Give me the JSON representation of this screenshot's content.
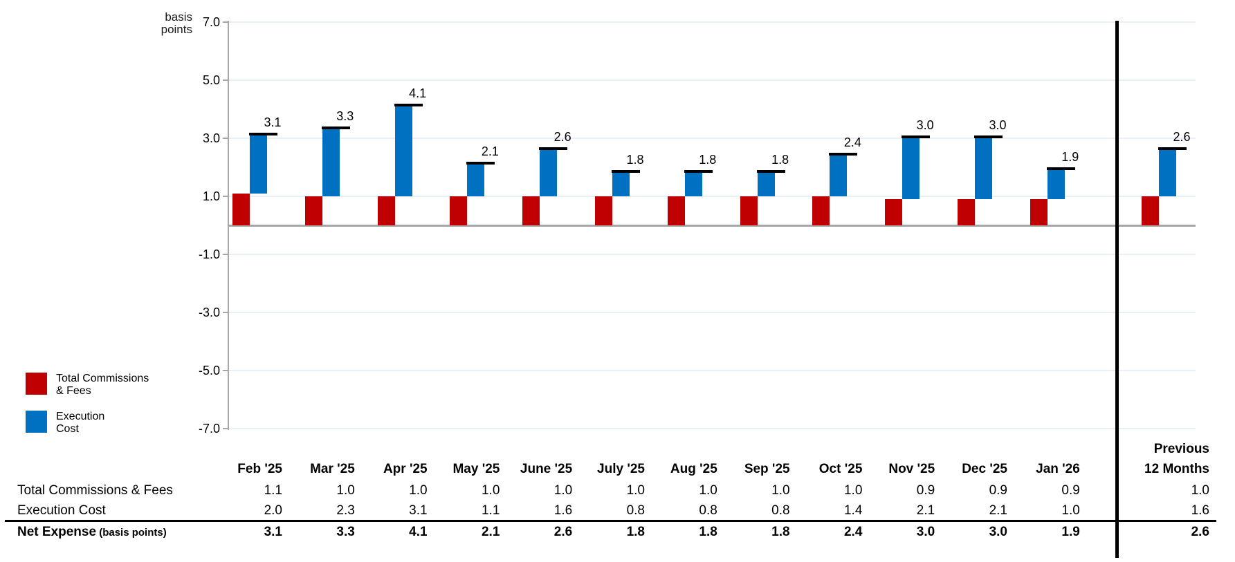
{
  "unit_label": {
    "line1": "basis",
    "line2": "points"
  },
  "legend": {
    "items": [
      {
        "id": "total-commissions-fees",
        "label_line1": "Total Commissions",
        "label_line2": "& Fees",
        "color": "#C00000"
      },
      {
        "id": "execution-cost",
        "label_line1": "Execution",
        "label_line2": "Cost",
        "color": "#0070C0"
      }
    ]
  },
  "chart_data": {
    "type": "bar",
    "subtype": "stacked floating columns with total markers",
    "title": "",
    "ylabel": "basis points",
    "ylim": [
      -7.0,
      7.0
    ],
    "yticks": [
      7.0,
      5.0,
      3.0,
      1.0,
      -1.0,
      -3.0,
      -5.0,
      -7.0
    ],
    "grid": true,
    "legend_position": "bottom-left",
    "categories": [
      "Feb '25",
      "Mar '25",
      "Apr '25",
      "May '25",
      "June '25",
      "July '25",
      "Aug '25",
      "Sep '25",
      "Oct '25",
      "Nov '25",
      "Dec '25",
      "Jan '26",
      "Previous 12 Months"
    ],
    "series": [
      {
        "name": "Total Commissions & Fees",
        "color": "#C00000",
        "values": [
          1.1,
          1.0,
          1.0,
          1.0,
          1.0,
          1.0,
          1.0,
          1.0,
          1.0,
          0.9,
          0.9,
          0.9,
          1.0
        ]
      },
      {
        "name": "Execution Cost",
        "color": "#0070C0",
        "values": [
          2.0,
          2.3,
          3.1,
          1.1,
          1.6,
          0.8,
          0.8,
          0.8,
          1.4,
          2.1,
          2.1,
          1.0,
          1.6
        ]
      }
    ],
    "totals": {
      "name": "Net Expense",
      "values": [
        3.1,
        3.3,
        4.1,
        2.1,
        2.6,
        1.8,
        1.8,
        1.8,
        2.4,
        3.0,
        3.0,
        1.9,
        2.6
      ]
    }
  },
  "table": {
    "month_headers": [
      "Feb '25",
      "Mar '25",
      "Apr '25",
      "May '25",
      "June '25",
      "July '25",
      "Aug '25",
      "Sep '25",
      "Oct '25",
      "Nov '25",
      "Dec '25",
      "Jan '26"
    ],
    "prev_header_line1": "Previous",
    "prev_header_line2": "12 Months",
    "rows": [
      {
        "label": "Total Commissions & Fees",
        "note": "",
        "bold": false,
        "values": [
          1.1,
          1.0,
          1.0,
          1.0,
          1.0,
          1.0,
          1.0,
          1.0,
          1.0,
          0.9,
          0.9,
          0.9
        ],
        "previous": 1.0
      },
      {
        "label": "Execution Cost",
        "note": "",
        "bold": false,
        "values": [
          2.0,
          2.3,
          3.1,
          1.1,
          1.6,
          0.8,
          0.8,
          0.8,
          1.4,
          2.1,
          2.1,
          1.0
        ],
        "previous": 1.6
      },
      {
        "label": "Net Expense",
        "note": "(basis points)",
        "bold": true,
        "values": [
          3.1,
          3.3,
          4.1,
          2.1,
          2.6,
          1.8,
          1.8,
          1.8,
          2.4,
          3.0,
          3.0,
          1.9
        ],
        "previous": 2.6
      }
    ]
  },
  "colors": {
    "red_series": "#C00000",
    "blue_series": "#0070C0",
    "axis_gray": "#a6a6a6",
    "gridline": "#e9eff7",
    "marker_black": "#000000"
  }
}
